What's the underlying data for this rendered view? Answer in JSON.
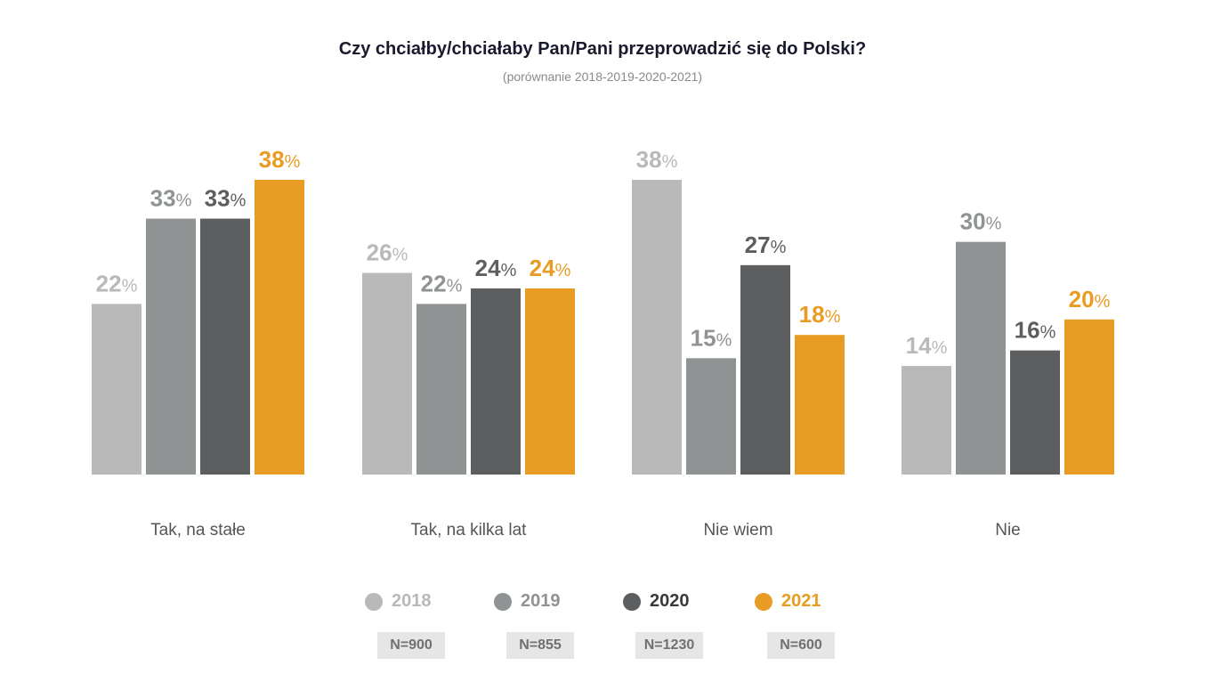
{
  "chart_data": {
    "type": "bar",
    "title": "Czy chciałby/chciałaby Pan/Pani przeprowadzić się do Polski?",
    "subtitle": "(porównanie 2018-2019-2020-2021)",
    "categories": [
      "Tak, na stałe",
      "Tak, na kilka lat",
      "Nie wiem",
      "Nie"
    ],
    "series": [
      {
        "name": "2018",
        "n": "N=900",
        "color": "#b8b9b8",
        "values": [
          22,
          26,
          38,
          14
        ]
      },
      {
        "name": "2019",
        "n": "N=855",
        "color": "#909393",
        "values": [
          33,
          22,
          15,
          30
        ]
      },
      {
        "name": "2020",
        "n": "N=1230",
        "color": "#5d5e60",
        "values": [
          33,
          24,
          27,
          16
        ]
      },
      {
        "name": "2021",
        "n": "N=600",
        "color": "#e99c23",
        "values": [
          38,
          24,
          18,
          20
        ]
      }
    ],
    "value_suffix": "%",
    "ylim": [
      0,
      38
    ],
    "grid": false,
    "legend_position": "bottom"
  }
}
